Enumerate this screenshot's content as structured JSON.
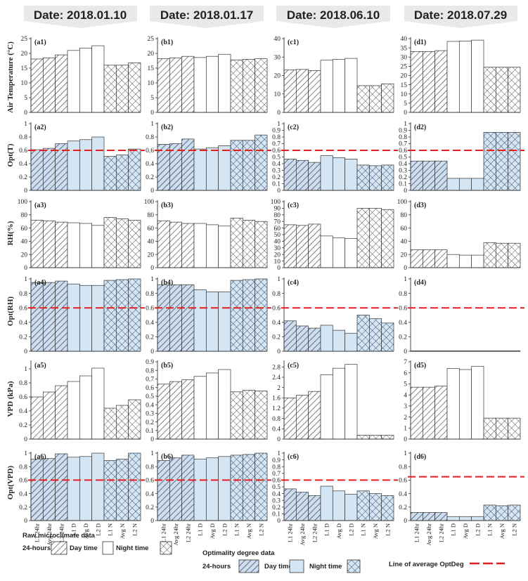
{
  "dates": [
    "Date: 2018.01.10",
    "Date: 2018.01.17",
    "Date: 2018.06.10",
    "Date: 2018.07.29"
  ],
  "row_ylabels": [
    "Air Temperature (°C)",
    "Opt(T)",
    "RH(%)",
    "Opt(RH)",
    "VPD (kPa)",
    "Opt(VPD)"
  ],
  "chart_data": {
    "type": "bar",
    "layout": "grid 6 rows x 4 columns of grouped bar charts",
    "categories": [
      "L1 24hr",
      "Avg 24hr",
      "L2 24hr",
      "L1 D",
      "Avg D",
      "L2 D",
      "L1 N",
      "Avg N",
      "L2 N"
    ],
    "period_groups": [
      "24-hours",
      "Day time",
      "Night time"
    ],
    "average_line_label": "Line of average OptDeg",
    "average_line_color": "#e02020",
    "raw_fill_color": "#ffffff",
    "optimality_fill_color": "#d4e6f4",
    "hatch_color": "#333333",
    "panels": [
      {
        "id": "(a1)",
        "row": 0,
        "col": 0,
        "kind": "raw",
        "ylim": [
          0,
          25
        ],
        "yticks": [
          0,
          5,
          10,
          15,
          20,
          25
        ],
        "values": [
          18.1,
          18.5,
          19.5,
          21.0,
          21.8,
          22.6,
          16.0,
          16.0,
          16.8
        ]
      },
      {
        "id": "(b1)",
        "row": 0,
        "col": 1,
        "kind": "raw",
        "ylim": [
          0,
          25
        ],
        "yticks": [
          0,
          5,
          10,
          15,
          20,
          25
        ],
        "values": [
          18.2,
          18.5,
          19.0,
          18.6,
          19.0,
          19.7,
          17.8,
          18.0,
          18.2
        ]
      },
      {
        "id": "(c1)",
        "row": 0,
        "col": 2,
        "kind": "raw",
        "ylim": [
          0,
          40
        ],
        "yticks": [
          0,
          10,
          20,
          30,
          40
        ],
        "values": [
          23.0,
          23.3,
          22.7,
          28.3,
          28.7,
          29.3,
          14.5,
          14.5,
          15.5
        ]
      },
      {
        "id": "(d1)",
        "row": 0,
        "col": 3,
        "kind": "raw",
        "ylim": [
          0,
          40
        ],
        "yticks": [
          0,
          5,
          10,
          15,
          20,
          25,
          30,
          35,
          40
        ],
        "values": [
          33.0,
          33.0,
          33.5,
          38.5,
          38.7,
          39.2,
          24.5,
          24.5,
          24.5
        ]
      },
      {
        "id": "(a2)",
        "row": 1,
        "col": 0,
        "kind": "opt",
        "ylim": [
          0,
          1
        ],
        "yticks": [
          0,
          0.2,
          0.4,
          0.6,
          0.8,
          1
        ],
        "avg_line": 0.6,
        "values": [
          0.61,
          0.63,
          0.7,
          0.74,
          0.76,
          0.8,
          0.51,
          0.53,
          0.62
        ]
      },
      {
        "id": "(b2)",
        "row": 1,
        "col": 1,
        "kind": "opt",
        "ylim": [
          0,
          1
        ],
        "yticks": [
          0,
          0.2,
          0.4,
          0.6,
          0.8,
          1
        ],
        "avg_line": 0.6,
        "values": [
          0.69,
          0.7,
          0.77,
          0.62,
          0.64,
          0.67,
          0.75,
          0.75,
          0.83
        ]
      },
      {
        "id": "(c2)",
        "row": 1,
        "col": 2,
        "kind": "opt",
        "ylim": [
          0,
          1
        ],
        "yticks": [
          0,
          0.1,
          0.2,
          0.3,
          0.4,
          0.5,
          0.6,
          0.7,
          0.8,
          0.9,
          1
        ],
        "avg_line": 0.6,
        "values": [
          0.47,
          0.45,
          0.42,
          0.52,
          0.49,
          0.47,
          0.38,
          0.37,
          0.38
        ]
      },
      {
        "id": "(d2)",
        "row": 1,
        "col": 3,
        "kind": "opt",
        "ylim": [
          0,
          1
        ],
        "yticks": [
          0,
          0.1,
          0.2,
          0.3,
          0.4,
          0.5,
          0.6,
          0.7,
          0.8,
          0.9,
          1
        ],
        "avg_line": 0.6,
        "values": [
          0.44,
          0.44,
          0.44,
          0.18,
          0.18,
          0.18,
          0.87,
          0.87,
          0.87
        ]
      },
      {
        "id": "(a3)",
        "row": 2,
        "col": 0,
        "kind": "raw",
        "ylim": [
          0,
          100
        ],
        "yticks": [
          0,
          20,
          40,
          60,
          80,
          100
        ],
        "values": [
          72,
          71,
          69,
          68,
          67,
          64,
          76,
          74,
          72
        ]
      },
      {
        "id": "(b3)",
        "row": 2,
        "col": 1,
        "kind": "raw",
        "ylim": [
          0,
          100
        ],
        "yticks": [
          0,
          20,
          40,
          60,
          80,
          100
        ],
        "values": [
          71,
          69,
          67,
          67,
          65,
          63,
          75,
          72,
          70
        ]
      },
      {
        "id": "(c3)",
        "row": 2,
        "col": 2,
        "kind": "raw",
        "ylim": [
          0,
          100
        ],
        "yticks": [
          0,
          10,
          20,
          30,
          40,
          50,
          60,
          70,
          80,
          90,
          100
        ],
        "values": [
          65,
          64,
          66,
          48,
          45,
          44,
          90,
          90,
          88
        ]
      },
      {
        "id": "(d3)",
        "row": 2,
        "col": 3,
        "kind": "raw",
        "ylim": [
          0,
          100
        ],
        "yticks": [
          0,
          20,
          40,
          60,
          80,
          100
        ],
        "values": [
          27,
          27,
          27,
          20,
          19,
          19,
          38,
          37,
          37
        ]
      },
      {
        "id": "(a4)",
        "row": 3,
        "col": 0,
        "kind": "opt",
        "ylim": [
          0,
          1
        ],
        "yticks": [
          0,
          0.2,
          0.4,
          0.6,
          0.8,
          1
        ],
        "avg_line": 0.6,
        "values": [
          0.95,
          0.95,
          0.97,
          0.93,
          0.91,
          0.91,
          0.98,
          0.99,
          1.0
        ]
      },
      {
        "id": "(b4)",
        "row": 3,
        "col": 1,
        "kind": "opt",
        "ylim": [
          0,
          1
        ],
        "yticks": [
          0,
          0.2,
          0.4,
          0.6,
          0.8,
          1
        ],
        "avg_line": 0.6,
        "values": [
          0.92,
          0.92,
          0.92,
          0.85,
          0.82,
          0.82,
          0.98,
          0.99,
          1.0
        ]
      },
      {
        "id": "(c4)",
        "row": 3,
        "col": 2,
        "kind": "opt",
        "ylim": [
          0,
          1
        ],
        "yticks": [
          0,
          0.2,
          0.4,
          0.6,
          0.8,
          1
        ],
        "avg_line": 0.6,
        "values": [
          0.42,
          0.35,
          0.32,
          0.36,
          0.29,
          0.25,
          0.5,
          0.45,
          0.39
        ]
      },
      {
        "id": "(d4)",
        "row": 3,
        "col": 3,
        "kind": "opt",
        "ylim": [
          0,
          1
        ],
        "yticks": [
          0,
          0.2,
          0.4,
          0.6,
          0.8,
          1
        ],
        "avg_line": 0.6,
        "values": [
          0.005,
          0.005,
          0.005,
          0.005,
          0.005,
          0.005,
          0.005,
          0.005,
          0.005
        ]
      },
      {
        "id": "(a5)",
        "row": 4,
        "col": 0,
        "kind": "raw",
        "ylim": [
          0,
          1.1
        ],
        "yticks": [
          0,
          0.2,
          0.4,
          0.6,
          0.8,
          1
        ],
        "values": [
          0.6,
          0.67,
          0.76,
          0.82,
          0.9,
          1.01,
          0.44,
          0.48,
          0.56
        ]
      },
      {
        "id": "(b5)",
        "row": 4,
        "col": 1,
        "kind": "raw",
        "ylim": [
          0,
          0.9
        ],
        "yticks": [
          0,
          0.1,
          0.2,
          0.3,
          0.4,
          0.5,
          0.6,
          0.7,
          0.8,
          0.9
        ],
        "values": [
          0.64,
          0.67,
          0.69,
          0.73,
          0.77,
          0.81,
          0.55,
          0.57,
          0.56
        ]
      },
      {
        "id": "(c5)",
        "row": 4,
        "col": 2,
        "kind": "raw",
        "ylim": [
          0,
          3.0
        ],
        "yticks": [
          0,
          0.4,
          0.8,
          1.2,
          1.6,
          2,
          2.4,
          2.8
        ],
        "values": [
          1.6,
          1.7,
          1.85,
          2.5,
          2.75,
          2.9,
          0.15,
          0.15,
          0.15
        ]
      },
      {
        "id": "(d5)",
        "row": 4,
        "col": 3,
        "kind": "raw",
        "ylim": [
          0,
          7
        ],
        "yticks": [
          0,
          1,
          2,
          3,
          4,
          5,
          6,
          7
        ],
        "values": [
          4.7,
          4.7,
          4.8,
          6.4,
          6.3,
          6.6,
          1.9,
          1.9,
          1.9
        ]
      },
      {
        "id": "(a6)",
        "row": 5,
        "col": 0,
        "kind": "opt",
        "ylim": [
          0,
          1
        ],
        "yticks": [
          0,
          0.2,
          0.4,
          0.6,
          0.8,
          1
        ],
        "avg_line": 0.6,
        "values": [
          0.91,
          0.92,
          0.99,
          0.94,
          0.95,
          1.0,
          0.89,
          0.91,
          1.0
        ]
      },
      {
        "id": "(b6)",
        "row": 5,
        "col": 1,
        "kind": "opt",
        "ylim": [
          0,
          1
        ],
        "yticks": [
          0,
          0.2,
          0.4,
          0.6,
          0.8,
          1
        ],
        "avg_line": 0.6,
        "values": [
          0.89,
          0.93,
          0.97,
          0.91,
          0.93,
          0.95,
          0.97,
          0.98,
          1.0
        ]
      },
      {
        "id": "(c6)",
        "row": 5,
        "col": 2,
        "kind": "opt",
        "ylim": [
          0,
          1
        ],
        "yticks": [
          0,
          0.1,
          0.2,
          0.3,
          0.4,
          0.5,
          0.6,
          0.7,
          0.8,
          0.9,
          1
        ],
        "avg_line": 0.6,
        "values": [
          0.47,
          0.42,
          0.37,
          0.51,
          0.44,
          0.39,
          0.44,
          0.4,
          0.37
        ]
      },
      {
        "id": "(d6)",
        "row": 5,
        "col": 3,
        "kind": "opt",
        "ylim": [
          0,
          1
        ],
        "yticks": [
          0,
          0.2,
          0.4,
          0.6,
          0.8,
          1
        ],
        "avg_line": 0.65,
        "values": [
          0.12,
          0.12,
          0.12,
          0.06,
          0.06,
          0.06,
          0.23,
          0.22,
          0.23
        ]
      }
    ]
  },
  "legend": {
    "raw_title": "Raw microclimate data",
    "opt_title": "Optimality degree data",
    "items": [
      "24-hours",
      "Day time",
      "Night time"
    ],
    "avg_line_label": "Line of average OptDeg"
  }
}
